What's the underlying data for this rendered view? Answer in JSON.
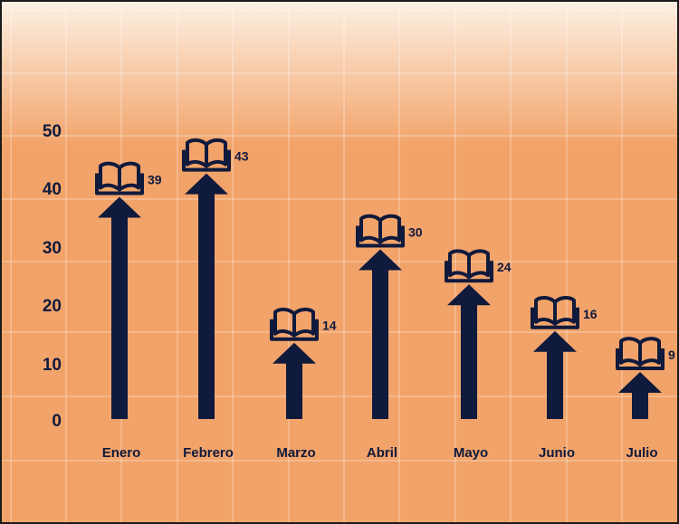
{
  "colors": {
    "background_top": "#fdf1e4",
    "background_bottom": "#f2a36a",
    "grid": "#ffffff",
    "mark": "#0f1a3c",
    "text": "#0f1a3c",
    "frame": "#1a1a1a"
  },
  "chart_data": {
    "type": "bar",
    "categories": [
      "Enero",
      "Febrero",
      "Marzo",
      "Abril",
      "Mayo",
      "Junio",
      "Julio"
    ],
    "values": [
      39,
      43,
      14,
      30,
      24,
      16,
      9
    ],
    "yticks": [
      "0",
      "10",
      "20",
      "30",
      "40",
      "50"
    ],
    "ylim": [
      0,
      50
    ],
    "grid": true,
    "mark_style": "arrow-with-book-icon",
    "data_labels": true
  }
}
